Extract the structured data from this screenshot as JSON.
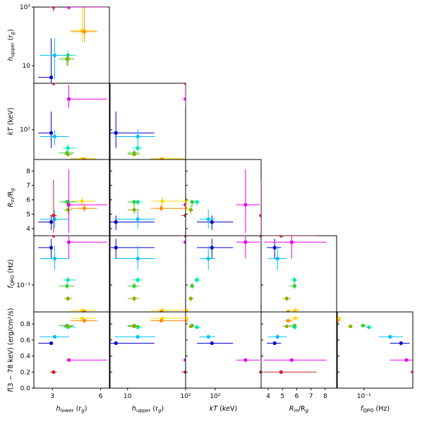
{
  "palette": [
    "#0000cc",
    "#00bfff",
    "#00e5b0",
    "#32cd32",
    "#8ab000",
    "#ffd700",
    "#ff8c00",
    "#ee00ee",
    "#cc2233"
  ],
  "chart_data": {
    "type": "scatter",
    "variables": [
      {
        "key": "h_lower",
        "label_main": "h",
        "label_sub": "lower",
        "label_unit": " (r",
        "label_unit_sub": "g",
        "label_end": ")",
        "scale": "log",
        "range": [
          2.3,
          6.8
        ],
        "ticks": [
          3,
          6
        ],
        "tick_labels": [
          "3",
          "6"
        ]
      },
      {
        "key": "h_upper",
        "label_main": "h",
        "label_sub": "upper",
        "label_unit": " (r",
        "label_unit_sub": "g",
        "label_end": ")",
        "scale": "log",
        "range": [
          5,
          100
        ],
        "ticks": [
          10,
          100
        ],
        "tick_labels": [
          "10",
          "10²"
        ]
      },
      {
        "key": "kT",
        "label_main": "kT",
        "label_sub": "",
        "label_unit": " (keV)",
        "label_unit_sub": "",
        "label_end": "",
        "scale": "log",
        "range": [
          38,
          450
        ],
        "ticks": [
          100
        ],
        "tick_labels": [
          "10²"
        ]
      },
      {
        "key": "R_in",
        "label_main": "R",
        "label_sub": "in",
        "label_unit": "/R",
        "label_unit_sub": "g",
        "label_end": "",
        "scale": "linear",
        "range": [
          3.5,
          8.8
        ],
        "ticks": [
          4,
          5,
          6,
          7,
          8
        ],
        "tick_labels": [
          "4",
          "5",
          "6",
          "7",
          "8"
        ]
      },
      {
        "key": "f_QPO",
        "label_main": "f",
        "label_sub": "QPO",
        "label_unit": " (Hz)",
        "label_unit_sub": "",
        "label_end": "",
        "scale": "log",
        "range": [
          0.055,
          0.3
        ],
        "ticks": [
          0.1
        ],
        "tick_labels": [
          "10⁻¹"
        ]
      },
      {
        "key": "flux",
        "label_main": "f",
        "label_sub": "",
        "label_unit": "(3 − 78 keV) (erg/cm²/s)",
        "label_unit_sub": "",
        "label_end": "",
        "scale": "linear",
        "range": [
          0.0,
          0.95
        ],
        "ticks": [
          0.0,
          0.2,
          0.4,
          0.6,
          0.8
        ],
        "tick_labels": [
          "0.0",
          "0.2",
          "0.4",
          "0.6",
          "0.8"
        ]
      }
    ],
    "points": [
      {
        "h_lower": [
          2.95,
          2.45,
          3.02
        ],
        "h_upper": [
          6.3,
          5.0,
          29
        ],
        "kT": [
          90,
          55,
          180
        ],
        "R_in": [
          4.45,
          3.9,
          4.9
        ],
        "f_QPO": [
          0.23,
          0.18,
          0.28
        ],
        "flux": [
          0.56,
          0.55,
          0.57
        ]
      },
      {
        "h_lower": [
          3.1,
          2.5,
          3.8
        ],
        "h_upper": [
          15,
          6.0,
          30
        ],
        "kT": [
          80,
          60,
          100
        ],
        "R_in": [
          4.65,
          4.0,
          5.3
        ],
        "f_QPO": [
          0.18,
          0.14,
          0.24
        ],
        "flux": [
          0.64,
          0.62,
          0.66
        ]
      },
      {
        "h_lower": [
          3.75,
          3.5,
          4.2
        ],
        "h_upper": [
          15,
          12,
          18
        ],
        "kT": [
          55,
          50,
          62
        ],
        "R_in": [
          5.85,
          5.6,
          6.0
        ],
        "f_QPO": [
          0.112,
          0.105,
          0.12
        ],
        "flux": [
          0.76,
          0.75,
          0.77
        ]
      },
      {
        "h_lower": [
          3.7,
          3.3,
          4.1
        ],
        "h_upper": [
          13,
          10,
          16
        ],
        "kT": [
          47,
          44,
          51
        ],
        "R_in": [
          5.85,
          5.5,
          6.0
        ],
        "f_QPO": [
          0.098,
          0.092,
          0.105
        ],
        "flux": [
          0.78,
          0.77,
          0.79
        ]
      },
      {
        "h_lower": [
          3.75,
          3.55,
          4.0
        ],
        "h_upper": [
          13,
          10,
          16
        ],
        "kT": [
          45,
          42,
          49
        ],
        "R_in": [
          5.3,
          5.0,
          5.6
        ],
        "f_QPO": [
          0.074,
          0.07,
          0.078
        ],
        "flux": [
          0.77,
          0.76,
          0.78
        ]
      },
      {
        "h_lower": [
          4.6,
          3.9,
          5.6
        ],
        "h_upper": [
          40,
          25,
          100
        ],
        "kT": [
          39,
          37,
          41
        ],
        "R_in": [
          5.9,
          5.5,
          6.2
        ],
        "f_QPO": [
          0.057,
          0.055,
          0.06
        ],
        "flux": [
          0.87,
          0.86,
          0.88
        ]
      },
      {
        "h_lower": [
          4.75,
          3.9,
          5.7
        ],
        "h_upper": [
          38,
          25,
          100
        ],
        "kT": [
          38,
          36,
          40
        ],
        "R_in": [
          5.4,
          5.2,
          5.7
        ],
        "f_QPO": [
          0.055,
          0.053,
          0.058
        ],
        "flux": [
          0.84,
          0.83,
          0.85
        ]
      },
      {
        "h_lower": [
          3.8,
          3.7,
          6.6
        ],
        "h_upper": [
          100,
          90,
          100
        ],
        "kT": [
          270,
          200,
          430
        ],
        "R_in": [
          5.65,
          3.7,
          8.1
        ],
        "f_QPO": [
          0.26,
          0.18,
          0.3
        ],
        "flux": [
          0.35,
          0.34,
          0.36
        ]
      },
      {
        "h_lower": [
          3.05,
          2.9,
          3.2
        ],
        "h_upper": [
          100,
          85,
          100
        ],
        "kT": [
          450,
          420,
          480
        ],
        "R_in": [
          4.9,
          3.7,
          7.4
        ],
        "f_QPO": [
          0.3,
          0.29,
          0.31
        ],
        "flux": [
          0.2,
          0.19,
          0.21
        ]
      }
    ]
  }
}
